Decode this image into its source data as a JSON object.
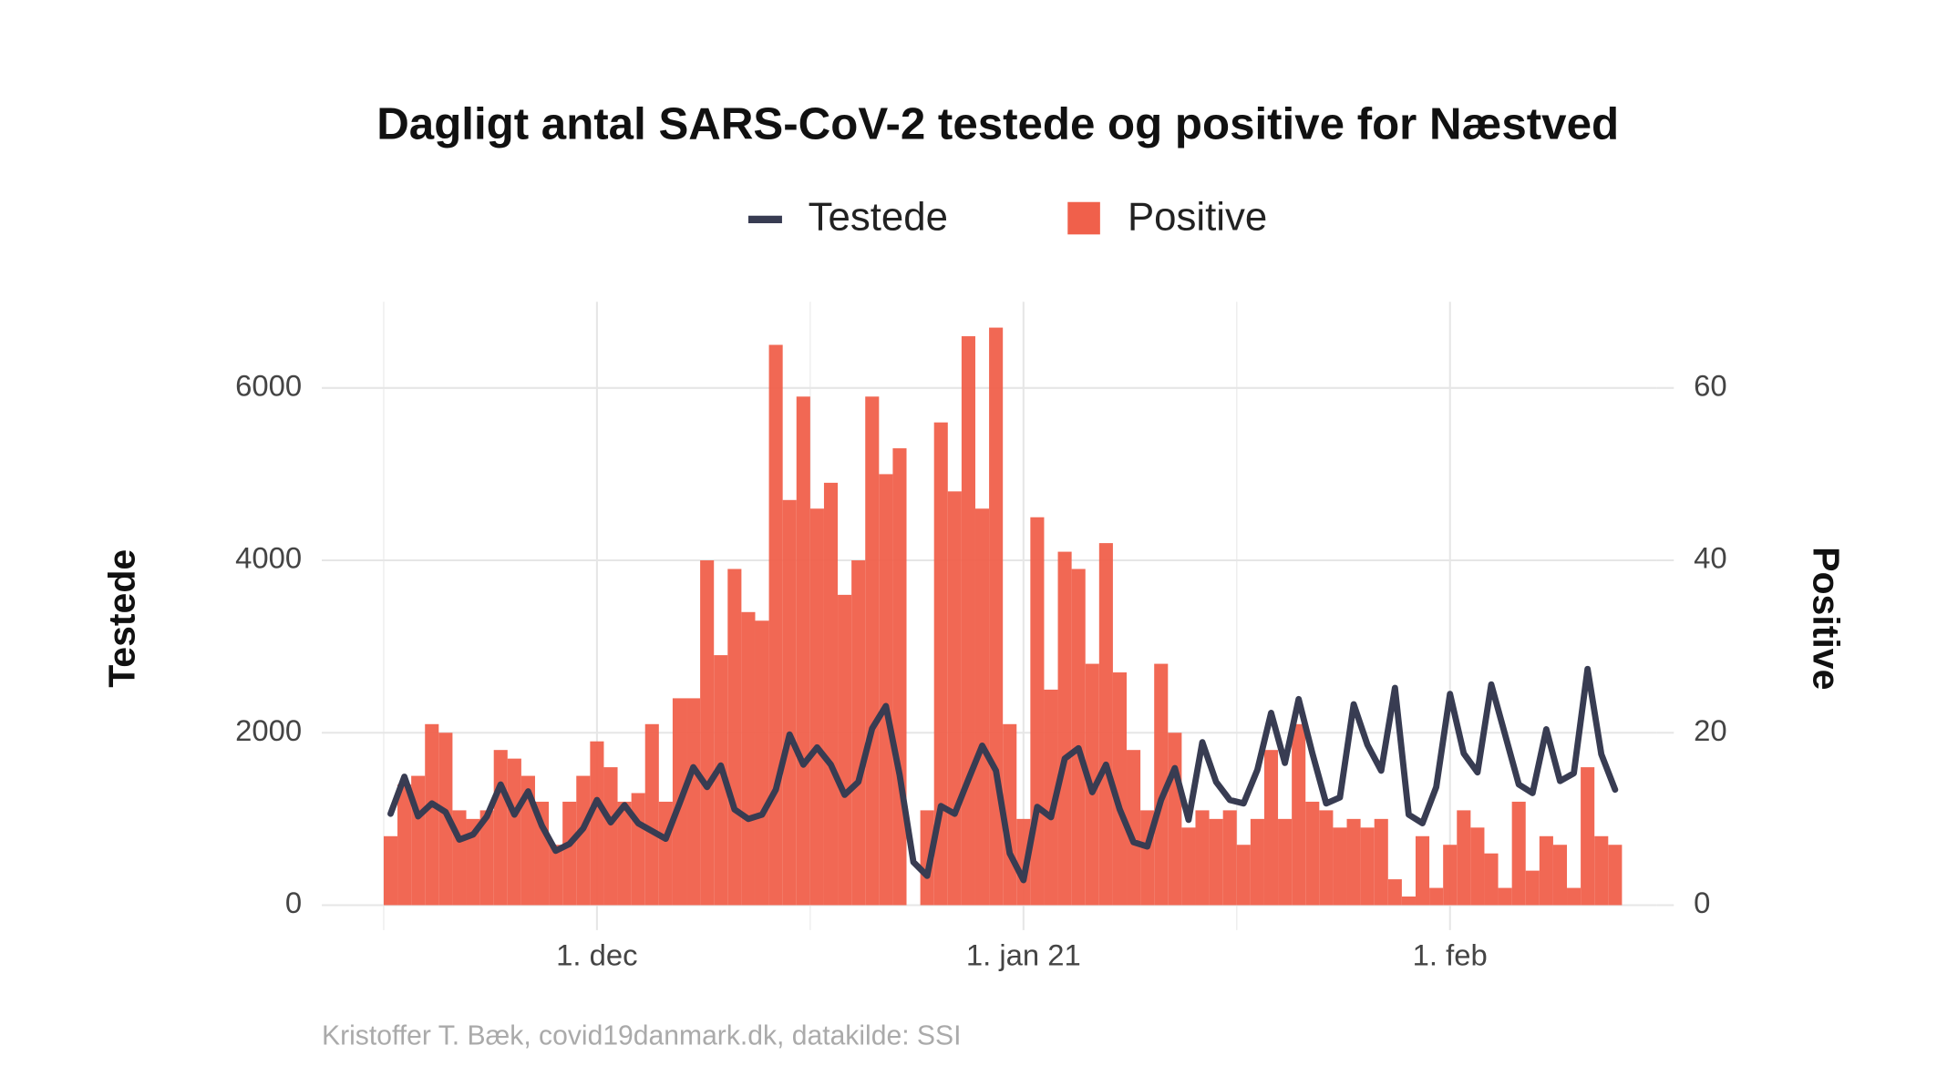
{
  "chart_data": {
    "type": "bar",
    "title": "Dagligt antal SARS-CoV-2 testede og positive for Næstved",
    "caption": "Kristoffer T. Bæk, covid19danmark.dk, datakilde: SSI",
    "y_label": "Testede",
    "y2_label": "Positive",
    "x": [
      "2020-11-16",
      "2020-11-17",
      "2020-11-18",
      "2020-11-19",
      "2020-11-20",
      "2020-11-21",
      "2020-11-22",
      "2020-11-23",
      "2020-11-24",
      "2020-11-25",
      "2020-11-26",
      "2020-11-27",
      "2020-11-28",
      "2020-11-29",
      "2020-11-30",
      "2020-12-01",
      "2020-12-02",
      "2020-12-03",
      "2020-12-04",
      "2020-12-05",
      "2020-12-06",
      "2020-12-07",
      "2020-12-08",
      "2020-12-09",
      "2020-12-10",
      "2020-12-11",
      "2020-12-12",
      "2020-12-13",
      "2020-12-14",
      "2020-12-15",
      "2020-12-16",
      "2020-12-17",
      "2020-12-18",
      "2020-12-19",
      "2020-12-20",
      "2020-12-21",
      "2020-12-22",
      "2020-12-23",
      "2020-12-24",
      "2020-12-25",
      "2020-12-26",
      "2020-12-27",
      "2020-12-28",
      "2020-12-29",
      "2020-12-30",
      "2020-12-31",
      "2021-01-01",
      "2021-01-02",
      "2021-01-03",
      "2021-01-04",
      "2021-01-05",
      "2021-01-06",
      "2021-01-07",
      "2021-01-08",
      "2021-01-09",
      "2021-01-10",
      "2021-01-11",
      "2021-01-12",
      "2021-01-13",
      "2021-01-14",
      "2021-01-15",
      "2021-01-16",
      "2021-01-17",
      "2021-01-18",
      "2021-01-19",
      "2021-01-20",
      "2021-01-21",
      "2021-01-22",
      "2021-01-23",
      "2021-01-24",
      "2021-01-25",
      "2021-01-26",
      "2021-01-27",
      "2021-01-28",
      "2021-01-29",
      "2021-01-30",
      "2021-01-31",
      "2021-02-01",
      "2021-02-02",
      "2021-02-03",
      "2021-02-04",
      "2021-02-05",
      "2021-02-06",
      "2021-02-07",
      "2021-02-08",
      "2021-02-09",
      "2021-02-10",
      "2021-02-11",
      "2021-02-12",
      "2021-02-13"
    ],
    "series": [
      {
        "name": "Testede",
        "type": "line",
        "color": "#383c52",
        "axis": "y",
        "values": [
          1060,
          1490,
          1030,
          1180,
          1080,
          760,
          820,
          1030,
          1400,
          1050,
          1320,
          920,
          630,
          710,
          890,
          1220,
          960,
          1160,
          950,
          860,
          770,
          1180,
          1600,
          1370,
          1620,
          1110,
          1000,
          1050,
          1340,
          1980,
          1630,
          1830,
          1630,
          1280,
          1430,
          2050,
          2310,
          1510,
          500,
          340,
          1150,
          1060,
          1460,
          1850,
          1560,
          600,
          290,
          1140,
          1020,
          1700,
          1820,
          1310,
          1630,
          1110,
          730,
          680,
          1220,
          1590,
          990,
          1890,
          1430,
          1220,
          1180,
          1570,
          2230,
          1650,
          2390,
          1760,
          1180,
          1250,
          2330,
          1860,
          1560,
          2520,
          1050,
          950,
          1370,
          2450,
          1760,
          1540,
          2560,
          1980,
          1400,
          1300,
          2040,
          1440,
          1530,
          2740,
          1750,
          1340
        ]
      },
      {
        "name": "Positive",
        "type": "bar",
        "color": "#f0604b",
        "axis": "y2",
        "values": [
          8,
          14,
          15,
          21,
          20,
          11,
          10,
          11,
          18,
          17,
          15,
          12,
          7,
          12,
          15,
          19,
          16,
          12,
          13,
          21,
          12,
          24,
          24,
          40,
          29,
          39,
          34,
          33,
          65,
          47,
          59,
          46,
          49,
          36,
          40,
          59,
          50,
          53,
          0,
          11,
          56,
          48,
          66,
          46,
          67,
          21,
          10,
          45,
          25,
          41,
          39,
          28,
          42,
          27,
          18,
          11,
          28,
          20,
          9,
          11,
          10,
          11,
          7,
          10,
          18,
          10,
          21,
          12,
          11,
          9,
          10,
          9,
          10,
          3,
          1,
          8,
          2,
          7,
          11,
          9,
          6,
          2,
          12,
          4,
          8,
          7,
          2,
          16,
          8,
          7
        ]
      }
    ],
    "xlim": [
      "2020-11-11",
      "2021-02-16"
    ],
    "xticks": [
      {
        "value": "2020-12-01",
        "label": "1. dec"
      },
      {
        "value": "2021-01-01",
        "label": "1. jan 21"
      },
      {
        "value": "2021-02-01",
        "label": "1. feb"
      }
    ],
    "ylim": [
      0,
      7000
    ],
    "yticks": [
      0,
      2000,
      4000,
      6000
    ],
    "y2lim": [
      0,
      70
    ],
    "y2ticks": [
      0,
      20,
      40,
      60
    ],
    "grid": true,
    "legend": "top"
  }
}
